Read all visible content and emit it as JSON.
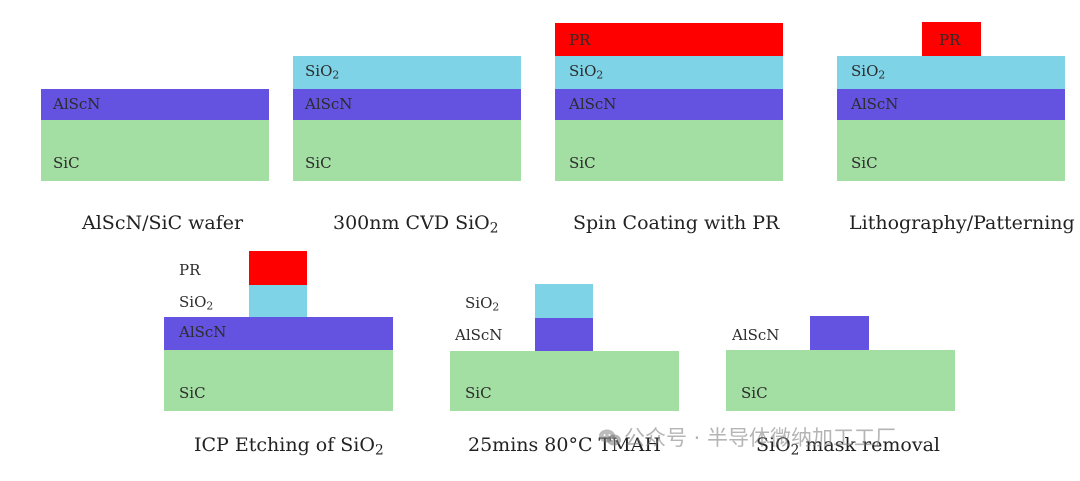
{
  "colors": {
    "pr": "#ff0000",
    "sio2": "#7ed3e6",
    "alscn": "#6353e0",
    "sic": "#a3dea3"
  },
  "labels": {
    "pr": "PR",
    "sio2_base": "SiO",
    "sio2_sub": "2",
    "alscn": "AlScN",
    "sic": "SiC"
  },
  "steps": [
    {
      "caption": "AlScN/SiC wafer"
    },
    {
      "caption": "300nm CVD SiO",
      "caption_sub": "2"
    },
    {
      "caption": "Spin Coating with PR"
    },
    {
      "caption": "Lithography/Patterning"
    },
    {
      "caption": "ICP Etching of SiO",
      "caption_sub": "2"
    },
    {
      "caption": "25mins 80°C TMAH"
    },
    {
      "caption": "SiO",
      "caption_sub": "2",
      "caption_rest": " mask removal"
    }
  ],
  "watermark": {
    "text": "公众号 · 半导体微纳加工工厂",
    "icon": "wechat-icon"
  }
}
